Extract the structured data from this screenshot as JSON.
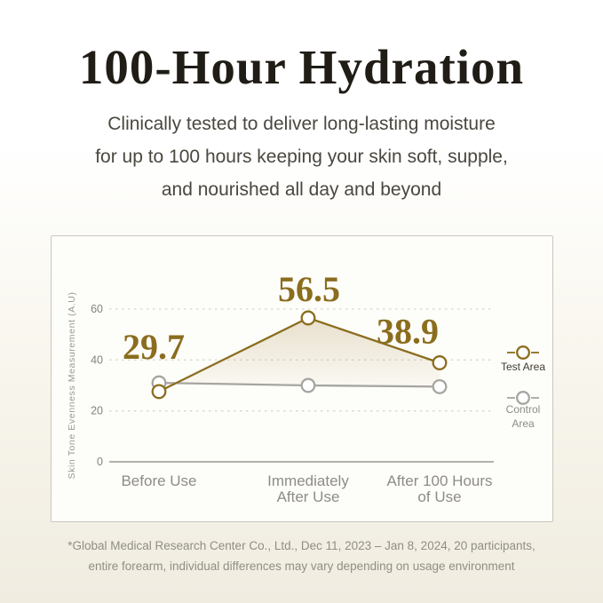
{
  "header": {
    "title": "100-Hour Hydration",
    "subtitle_lines": [
      "Clinically tested to deliver long-lasting moisture",
      "for up to 100 hours keeping your skin soft, supple,",
      "and nourished all day and beyond"
    ]
  },
  "chart_data": {
    "type": "line",
    "ylabel": "Skin Tone Evenness Measurement (A.U)",
    "ylim": [
      0,
      60
    ],
    "yticks": [
      0,
      20,
      40,
      60
    ],
    "grid": "horizontal-dashed",
    "legend_position": "right",
    "categories": [
      "Before Use",
      "Immediately After Use",
      "After 100 Hours of Use"
    ],
    "category_lines": [
      [
        "Before Use"
      ],
      [
        "Immediately",
        "After Use"
      ],
      [
        "After 100 Hours",
        "of Use"
      ]
    ],
    "highlight_category_index": 2,
    "series": [
      {
        "name": "Test Area",
        "name_lines": [
          "Test Area"
        ],
        "values": [
          29.7,
          56.5,
          38.9
        ],
        "color": "#8b6d1e",
        "point_labels_shown": true
      },
      {
        "name": "Control Area",
        "name_lines": [
          "Control",
          "Area"
        ],
        "values": [
          31,
          30,
          29.5
        ],
        "color": "#a7a5a0",
        "point_labels_shown": false
      }
    ],
    "area_fill": "shaded area between Test Area line and Control Area line",
    "colors": {
      "test_series": "#8b6d1e",
      "control_series": "#a7a5a0",
      "data_label": "#8b6d1e",
      "category_default": "#8e8c84",
      "category_highlight": "#8a671c",
      "legend_test_label": "#3f3c30",
      "legend_control_label": "#8e8c84",
      "grid_line": "#d8d6cc",
      "axis_line": "#b3b1a7",
      "area_fill_top": "rgba(201,180,137,0.40)",
      "area_fill_bottom": "rgba(201,180,137,0.04)"
    }
  },
  "footnote": {
    "lines": [
      "*Global Medical Research Center Co., Ltd., Dec 11, 2023 – Jan 8, 2024, 20 participants,",
      "entire forearm, individual differences may vary depending on usage environment"
    ]
  }
}
